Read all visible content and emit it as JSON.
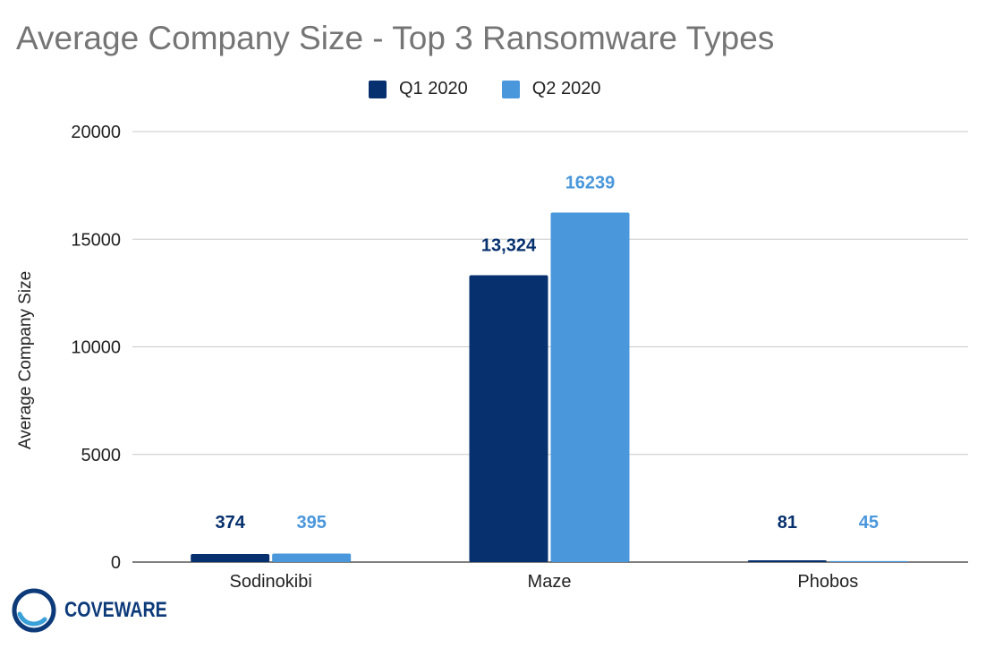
{
  "chart_data": {
    "type": "bar",
    "title": "Average Company Size - Top 3 Ransomware Types",
    "xlabel": "",
    "ylabel": "Average Company Size",
    "categories": [
      "Sodinokibi",
      "Maze",
      "Phobos"
    ],
    "series": [
      {
        "name": "Q1 2020",
        "color": "#06306e",
        "values": [
          374,
          13324,
          81
        ],
        "labels": [
          "374",
          "13,324",
          "81"
        ]
      },
      {
        "name": "Q2 2020",
        "color": "#4a97dc",
        "values": [
          395,
          16239,
          45
        ],
        "labels": [
          "395",
          "16239",
          "45"
        ]
      }
    ],
    "ylim": [
      0,
      20000
    ],
    "yticks": [
      "0",
      "5000",
      "10000",
      "15000",
      "20000"
    ],
    "grid": true,
    "legend_position": "top"
  },
  "brand": {
    "name": "COVEWARE",
    "color": "#0d3b7a",
    "accent": "#3aa0d8"
  }
}
